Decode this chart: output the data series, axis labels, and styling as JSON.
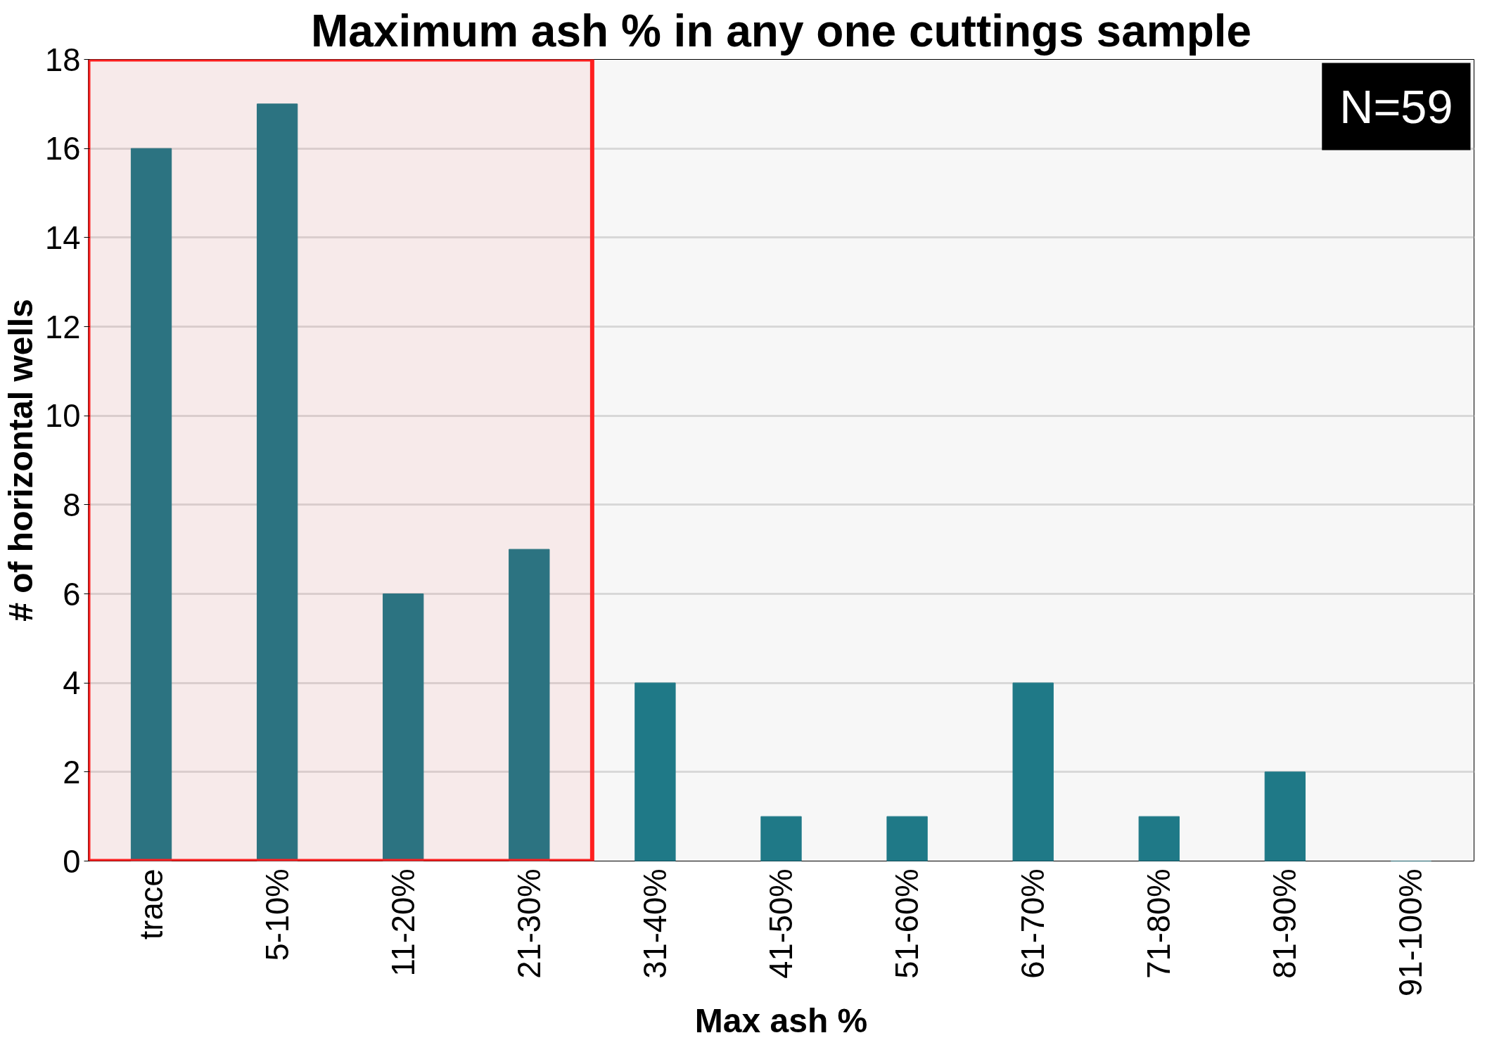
{
  "chart_data": {
    "type": "bar",
    "title": "Maximum ash % in any one cuttings sample",
    "xlabel": "Max ash %",
    "ylabel": "# of horizontal wells",
    "categories": [
      "trace",
      "5-10%",
      "11-20%",
      "21-30%",
      "31-40%",
      "41-50%",
      "51-60%",
      "61-70%",
      "71-80%",
      "81-90%",
      "91-100%"
    ],
    "values": [
      16,
      17,
      6,
      7,
      4,
      1,
      1,
      4,
      1,
      2,
      0
    ],
    "color": "#1f7987",
    "ylim": [
      0,
      18
    ],
    "yticks": [
      0,
      2,
      4,
      6,
      8,
      10,
      12,
      14,
      16,
      18
    ],
    "grid": "y",
    "annotations": [
      "N=59"
    ],
    "bands": [
      {
        "axis": "x",
        "from": "trace",
        "to": "21-30%",
        "label": null,
        "color": "#ff2020"
      }
    ]
  }
}
